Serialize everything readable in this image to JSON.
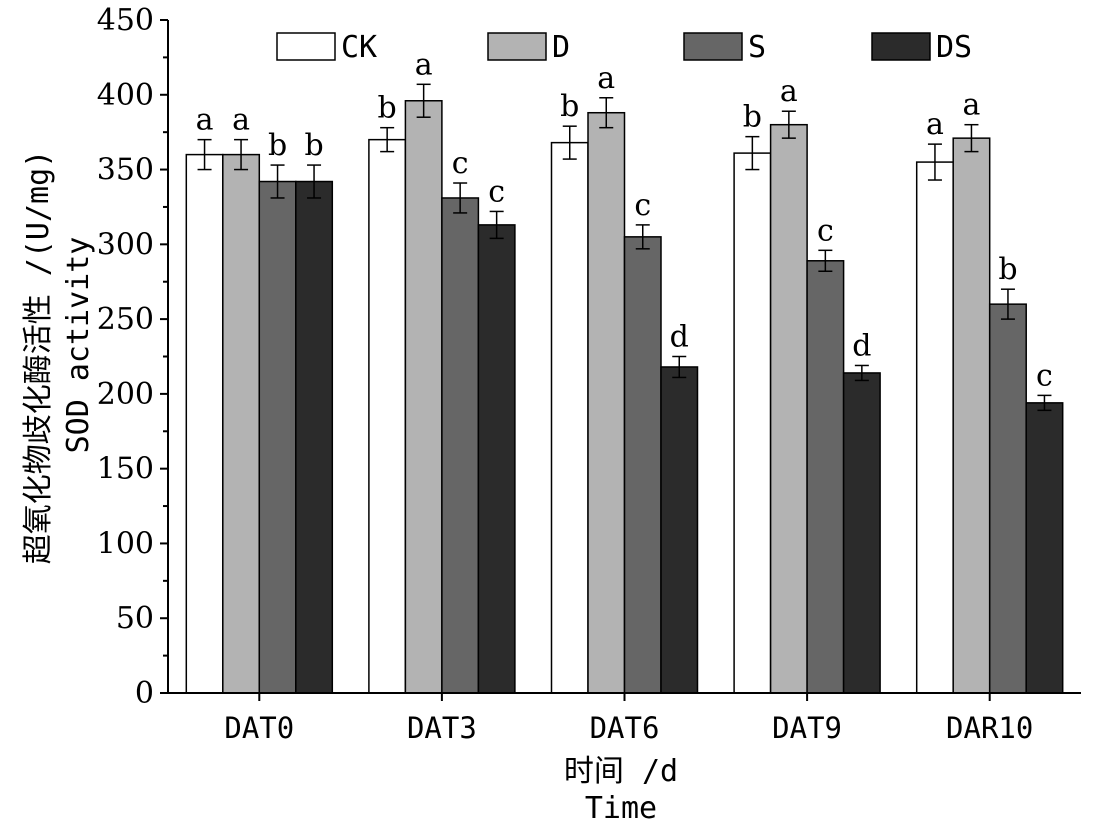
{
  "chart_data": {
    "type": "bar",
    "title": "",
    "ylabel_line1": "超氧化物歧化酶活性 /(U/mg)",
    "ylabel_line2": "SOD activity",
    "xlabel_line1": "时间 /d",
    "xlabel_line2": "Time",
    "ylim": [
      0,
      450
    ],
    "yticks": [
      0,
      50,
      100,
      150,
      200,
      250,
      300,
      350,
      400,
      450
    ],
    "categories": [
      "DAT0",
      "DAT3",
      "DAT6",
      "DAT9",
      "DAR10"
    ],
    "legend_position": "top",
    "series": [
      {
        "name": "CK",
        "color": "#ffffff",
        "values": [
          360,
          370,
          368,
          361,
          355
        ],
        "errors": [
          10,
          8,
          11,
          11,
          12
        ],
        "labels": [
          "a",
          "b",
          "b",
          "b",
          "a"
        ]
      },
      {
        "name": "D",
        "color": "#b3b3b3",
        "values": [
          360,
          396,
          388,
          380,
          371
        ],
        "errors": [
          10,
          11,
          10,
          9,
          9
        ],
        "labels": [
          "a",
          "a",
          "a",
          "a",
          "a"
        ]
      },
      {
        "name": "S",
        "color": "#666666",
        "values": [
          342,
          331,
          305,
          289,
          260
        ],
        "errors": [
          11,
          10,
          8,
          7,
          10
        ],
        "labels": [
          "b",
          "c",
          "c",
          "c",
          "b"
        ]
      },
      {
        "name": "DS",
        "color": "#2b2b2b",
        "values": [
          342,
          313,
          218,
          214,
          194
        ],
        "errors": [
          11,
          9,
          7,
          5,
          5
        ],
        "labels": [
          "b",
          "c",
          "d",
          "d",
          "c"
        ]
      }
    ]
  }
}
